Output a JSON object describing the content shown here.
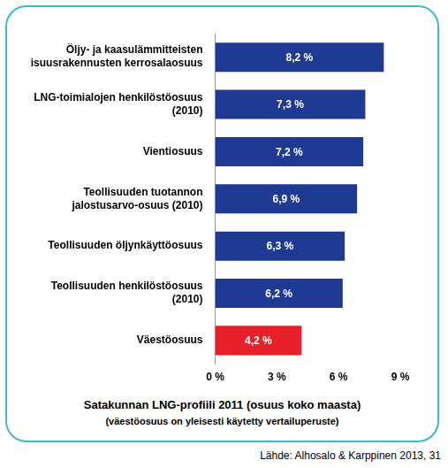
{
  "chart_data": {
    "type": "bar",
    "orientation": "horizontal",
    "title": "Satakunnan LNG-profiili 2011 (osuus koko maasta)",
    "subtitle": "(väestöosuus on yleisesti käytetty vertailuperuste)",
    "source": "Lähde: Alhosalo & Karppinen 2013, 31",
    "categories": [
      "Öljy- ja kaasulämmitteisten\nteollisuusrakennusten kerrosalaosuus",
      "LNG-toimialojen henkilöstöosuus\n(2010)",
      "Vientiosuus",
      "Teollisuuden tuotannon\njalostusarvo-osuus (2010)",
      "Teollisuuden öljynkäyttöosuus",
      "Teollisuuden henkilöstöosuus\n(2010)",
      "Väestöosuus"
    ],
    "values": [
      8.2,
      7.3,
      7.2,
      6.9,
      6.3,
      6.2,
      4.2
    ],
    "value_labels": [
      "8,2 %",
      "7,3 %",
      "7,2 %",
      "6,9 %",
      "6,3 %",
      "6,2 %",
      "4,2 %"
    ],
    "colors": [
      "#1f3a93",
      "#1f3a93",
      "#1f3a93",
      "#1f3a93",
      "#1f3a93",
      "#1f3a93",
      "#e8202a"
    ],
    "data_labels": true,
    "grid": false,
    "xlim": [
      0,
      9
    ],
    "xticks": [
      {
        "value": 0,
        "label": "0 %"
      },
      {
        "value": 3,
        "label": "3 %"
      },
      {
        "value": 6,
        "label": "6 %"
      },
      {
        "value": 9,
        "label": "9 %"
      }
    ]
  }
}
